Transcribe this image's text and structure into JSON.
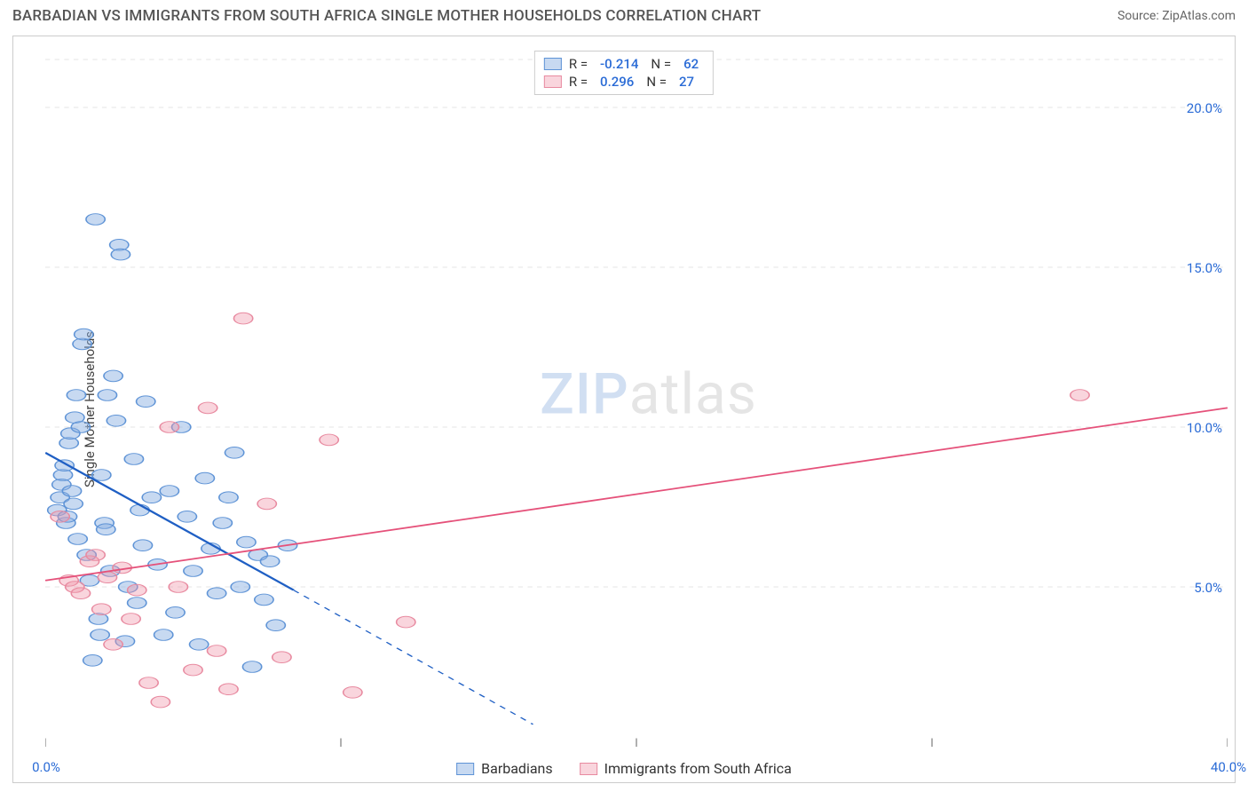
{
  "header": {
    "title": "BARBADIAN VS IMMIGRANTS FROM SOUTH AFRICA SINGLE MOTHER HOUSEHOLDS CORRELATION CHART",
    "source": "Source: ZipAtlas.com"
  },
  "chart": {
    "type": "scatter",
    "ylabel": "Single Mother Households",
    "background_color": "#ffffff",
    "border_color": "#cccccc",
    "grid_color": "#dcdcdc",
    "grid_dash": "4,4",
    "watermark": {
      "zip": "ZIP",
      "atlas": "atlas"
    },
    "xlim": [
      0,
      40
    ],
    "ylim": [
      0,
      22
    ],
    "xticks": [
      {
        "v": 0,
        "label": "0.0%"
      },
      {
        "v": 10,
        "label": null
      },
      {
        "v": 20,
        "label": null
      },
      {
        "v": 30,
        "label": null
      },
      {
        "v": 40,
        "label": "40.0%"
      }
    ],
    "yticks": [
      {
        "v": 5,
        "label": "5.0%"
      },
      {
        "v": 10,
        "label": "10.0%"
      },
      {
        "v": 15,
        "label": "15.0%"
      },
      {
        "v": 20,
        "label": "20.0%"
      }
    ],
    "series": [
      {
        "key": "barbadians",
        "label": "Barbadians",
        "r_value": "-0.214",
        "n_value": "62",
        "color_fill": "rgba(130,170,225,0.45)",
        "color_stroke": "#5e93d6",
        "trend_color": "#1f5fc4",
        "trend_width": 2.4,
        "trend": {
          "x1": 0,
          "y1": 9.2,
          "x2": 8.4,
          "y2": 4.9,
          "x2_ext": 16.5,
          "y2_ext": 0.7
        },
        "marker_r": 8,
        "points": [
          [
            0.4,
            7.4
          ],
          [
            0.5,
            7.8
          ],
          [
            0.55,
            8.2
          ],
          [
            0.6,
            8.5
          ],
          [
            0.65,
            8.8
          ],
          [
            0.7,
            7.0
          ],
          [
            0.75,
            7.2
          ],
          [
            0.8,
            9.5
          ],
          [
            0.85,
            9.8
          ],
          [
            0.9,
            8.0
          ],
          [
            0.95,
            7.6
          ],
          [
            1.0,
            10.3
          ],
          [
            1.05,
            11.0
          ],
          [
            1.1,
            6.5
          ],
          [
            1.2,
            10.0
          ],
          [
            1.25,
            12.6
          ],
          [
            1.3,
            12.9
          ],
          [
            1.4,
            6.0
          ],
          [
            1.5,
            5.2
          ],
          [
            1.6,
            2.7
          ],
          [
            1.7,
            16.5
          ],
          [
            1.8,
            4.0
          ],
          [
            1.85,
            3.5
          ],
          [
            1.9,
            8.5
          ],
          [
            2.0,
            7.0
          ],
          [
            2.05,
            6.8
          ],
          [
            2.1,
            11.0
          ],
          [
            2.2,
            5.5
          ],
          [
            2.3,
            11.6
          ],
          [
            2.4,
            10.2
          ],
          [
            2.5,
            15.7
          ],
          [
            2.55,
            15.4
          ],
          [
            2.7,
            3.3
          ],
          [
            2.8,
            5.0
          ],
          [
            3.0,
            9.0
          ],
          [
            3.1,
            4.5
          ],
          [
            3.2,
            7.4
          ],
          [
            3.3,
            6.3
          ],
          [
            3.4,
            10.8
          ],
          [
            3.6,
            7.8
          ],
          [
            3.8,
            5.7
          ],
          [
            4.0,
            3.5
          ],
          [
            4.2,
            8.0
          ],
          [
            4.4,
            4.2
          ],
          [
            4.6,
            10.0
          ],
          [
            4.8,
            7.2
          ],
          [
            5.0,
            5.5
          ],
          [
            5.2,
            3.2
          ],
          [
            5.4,
            8.4
          ],
          [
            5.6,
            6.2
          ],
          [
            5.8,
            4.8
          ],
          [
            6.0,
            7.0
          ],
          [
            6.2,
            7.8
          ],
          [
            6.4,
            9.2
          ],
          [
            6.6,
            5.0
          ],
          [
            6.8,
            6.4
          ],
          [
            7.0,
            2.5
          ],
          [
            7.2,
            6.0
          ],
          [
            7.4,
            4.6
          ],
          [
            7.6,
            5.8
          ],
          [
            7.8,
            3.8
          ],
          [
            8.2,
            6.3
          ]
        ]
      },
      {
        "key": "sa",
        "label": "Immigrants from South Africa",
        "r_value": "0.296",
        "n_value": "27",
        "color_fill": "rgba(240,150,170,0.40)",
        "color_stroke": "#e88aa0",
        "trend_color": "#e5517a",
        "trend_width": 2.2,
        "trend": {
          "x1": 0,
          "y1": 5.2,
          "x2": 40,
          "y2": 10.6
        },
        "marker_r": 8,
        "points": [
          [
            0.5,
            7.2
          ],
          [
            0.8,
            5.2
          ],
          [
            1.0,
            5.0
          ],
          [
            1.2,
            4.8
          ],
          [
            1.5,
            5.8
          ],
          [
            1.7,
            6.0
          ],
          [
            1.9,
            4.3
          ],
          [
            2.1,
            5.3
          ],
          [
            2.3,
            3.2
          ],
          [
            2.6,
            5.6
          ],
          [
            2.9,
            4.0
          ],
          [
            3.1,
            4.9
          ],
          [
            3.5,
            2.0
          ],
          [
            3.9,
            1.4
          ],
          [
            4.2,
            10.0
          ],
          [
            4.5,
            5.0
          ],
          [
            5.0,
            2.4
          ],
          [
            5.5,
            10.6
          ],
          [
            5.8,
            3.0
          ],
          [
            6.2,
            1.8
          ],
          [
            6.7,
            13.4
          ],
          [
            7.5,
            7.6
          ],
          [
            8.0,
            2.8
          ],
          [
            9.6,
            9.6
          ],
          [
            10.4,
            1.7
          ],
          [
            12.2,
            3.9
          ],
          [
            35.0,
            11.0
          ]
        ]
      }
    ],
    "legend_top_labels": {
      "r": "R  =",
      "n": "N  ="
    },
    "swatch_border_width": 1
  }
}
